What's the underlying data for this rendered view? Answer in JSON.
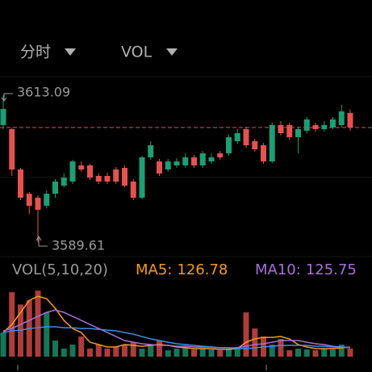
{
  "header": {
    "tabs": [
      "分时",
      "VOL"
    ]
  },
  "chart_data": [
    {
      "type": "candlestick",
      "up_color": "#1e9e74",
      "down_color": "#e5524f",
      "ylim": [
        3587.68,
        3616.06
      ],
      "open": [
        3608.32,
        3607.67,
        3601.22,
        3597.35,
        3596.71,
        3595.42,
        3597.35,
        3598.64,
        3599.29,
        3601.87,
        3601.87,
        3600.19,
        3600.19,
        3601.22,
        3601.48,
        3599.29,
        3596.71,
        3603.16,
        3602.51,
        3601.22,
        3601.87,
        3601.87,
        3603.16,
        3601.87,
        3602.51,
        3603.8,
        3603.8,
        3605.74,
        3607.67,
        3605.74,
        3605.09,
        3602.51,
        3608.32,
        3608.32,
        3606.38,
        3607.41,
        3608.32,
        3607.67,
        3607.93,
        3608.32,
        3610.25
      ],
      "high": [
        3613.09,
        3607.93,
        3601.48,
        3597.61,
        3597.09,
        3597.87,
        3599.67,
        3600.58,
        3602.77,
        3602.51,
        3602.13,
        3600.58,
        3600.71,
        3601.61,
        3601.87,
        3599.67,
        3603.42,
        3605.74,
        3602.9,
        3602.9,
        3603.03,
        3603.8,
        3603.54,
        3604.19,
        3603.8,
        3604.19,
        3606.77,
        3607.67,
        3608.06,
        3606.12,
        3605.48,
        3608.7,
        3608.96,
        3608.7,
        3608.06,
        3609.61,
        3608.7,
        3608.96,
        3609.61,
        3611.54,
        3610.77
      ],
      "low": [
        3607.67,
        3600.19,
        3596.32,
        3594.13,
        3589.61,
        3595.03,
        3596.71,
        3598.38,
        3598.9,
        3600.84,
        3599.54,
        3598.9,
        3598.9,
        3598.9,
        3598.38,
        3596.32,
        3596.45,
        3602.77,
        3600.19,
        3600.84,
        3601.48,
        3601.48,
        3601.48,
        3601.48,
        3602.13,
        3602.77,
        3603.42,
        3605.35,
        3604.7,
        3604.06,
        3602.13,
        3602.25,
        3606.64,
        3605.99,
        3603.8,
        3607.03,
        3607.28,
        3607.28,
        3607.67,
        3607.93,
        3607.41
      ],
      "close": [
        3610.9,
        3601.22,
        3596.71,
        3595.42,
        3594.77,
        3597.35,
        3599.29,
        3599.93,
        3602.51,
        3601.22,
        3599.93,
        3599.29,
        3599.29,
        3599.29,
        3598.64,
        3596.71,
        3603.16,
        3605.09,
        3600.58,
        3602.51,
        3602.51,
        3603.16,
        3601.87,
        3603.8,
        3603.16,
        3603.16,
        3606.38,
        3607.03,
        3605.09,
        3604.45,
        3602.51,
        3608.32,
        3607.03,
        3606.38,
        3607.67,
        3609.22,
        3607.67,
        3608.32,
        3609.22,
        3610.51,
        3607.93
      ]
    },
    {
      "type": "bar",
      "title": "VOL(5,10,20)",
      "ylim": [
        0,
        1050
      ],
      "values": [
        325,
        865,
        700,
        756,
        886,
        594,
        216,
        108,
        162,
        270,
        108,
        162,
        108,
        130,
        162,
        194,
        108,
        162,
        216,
        86,
        108,
        130,
        97,
        108,
        97,
        86,
        108,
        130,
        594,
        378,
        270,
        162,
        238,
        86,
        108,
        97,
        86,
        108,
        97,
        162,
        108
      ],
      "lines": [
        {
          "name": "MA5:",
          "color": "#f39a24",
          "values": [
            324,
            432,
            594,
            756,
            810,
            778,
            648,
            486,
            378,
            324,
            194,
            162,
            130,
            130,
            162,
            151,
            140,
            151,
            162,
            151,
            130,
            119,
            108,
            108,
            108,
            97,
            97,
            108,
            194,
            238,
            259,
            259,
            270,
            238,
            162,
            130,
            108,
            108,
            108,
            119,
            126.78
          ]
        },
        {
          "name": "MA10:",
          "color": "#a86fd8",
          "values": [
            346,
            378,
            432,
            486,
            540,
            594,
            626,
            594,
            540,
            486,
            432,
            378,
            324,
            270,
            216,
            194,
            173,
            162,
            151,
            151,
            140,
            140,
            130,
            130,
            130,
            119,
            119,
            119,
            140,
            162,
            173,
            194,
            216,
            216,
            216,
            194,
            173,
            162,
            140,
            130,
            125.75
          ]
        },
        {
          "color": "#3a8fe8",
          "values": [
            324,
            346,
            356,
            378,
            389,
            400,
            400,
            389,
            389,
            378,
            378,
            367,
            356,
            346,
            324,
            302,
            270,
            238,
            216,
            194,
            173,
            162,
            151,
            140,
            130,
            119,
            119,
            108,
            108,
            119,
            130,
            140,
            151,
            151,
            151,
            151,
            140,
            140,
            130,
            130,
            119
          ]
        }
      ]
    }
  ]
}
